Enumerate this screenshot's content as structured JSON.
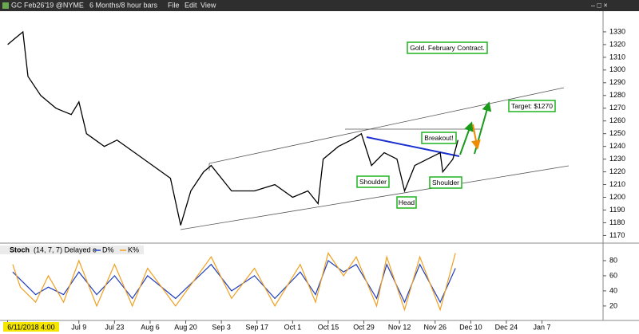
{
  "toolbar": {
    "symbol": "GC Feb26'19 @NYME",
    "period": "6 Months/8 hour bars",
    "menus": [
      "File",
      "Edit",
      "View"
    ]
  },
  "chart_data": [
    {
      "type": "line",
      "annotations": [
        "Gold. February Contract.",
        "Target: $1270",
        "Breakout!",
        "Shoulder",
        "Head",
        "Shoulder"
      ],
      "x": [
        0,
        3,
        6,
        8,
        13,
        19,
        25,
        28,
        31,
        38,
        43,
        50,
        57,
        64,
        68,
        72,
        77,
        80,
        88,
        97,
        105,
        112,
        118,
        122,
        124,
        130,
        135,
        139,
        143,
        148,
        153,
        156,
        160,
        165,
        170,
        171,
        175,
        177
      ],
      "series": [
        {
          "name": "GC",
          "color": "#000000",
          "values": [
            1320,
            1325,
            1330,
            1295,
            1280,
            1270,
            1265,
            1275,
            1250,
            1240,
            1245,
            1235,
            1225,
            1215,
            1178,
            1205,
            1220,
            1225,
            1205,
            1205,
            1210,
            1200,
            1205,
            1195,
            1230,
            1240,
            1245,
            1250,
            1225,
            1235,
            1230,
            1205,
            1225,
            1230,
            1235,
            1220,
            1230,
            1245
          ]
        }
      ],
      "xlim": [
        -3,
        234
      ],
      "xticks": [
        {
          "value": 0,
          "label": "6/11/2018 4:00"
        },
        {
          "value": 28,
          "label": "Jul 9"
        },
        {
          "value": 42,
          "label": "Jul 23"
        },
        {
          "value": 56,
          "label": "Aug 6"
        },
        {
          "value": 70,
          "label": "Aug 20"
        },
        {
          "value": 84,
          "label": "Sep 3"
        },
        {
          "value": 98,
          "label": "Sep 17"
        },
        {
          "value": 112,
          "label": "Oct 1"
        },
        {
          "value": 126,
          "label": "Oct 15"
        },
        {
          "value": 140,
          "label": "Oct 29"
        },
        {
          "value": 154,
          "label": "Nov 12"
        },
        {
          "value": 168,
          "label": "Nov 26"
        },
        {
          "value": 182,
          "label": "Dec 10"
        },
        {
          "value": 196,
          "label": "Dec 24"
        },
        {
          "value": 210,
          "label": "Jan 7"
        }
      ],
      "ylim": [
        1164,
        1345
      ],
      "yticks": [
        1170,
        1180,
        1190,
        1200,
        1210,
        1220,
        1230,
        1240,
        1250,
        1260,
        1270,
        1280,
        1290,
        1300,
        1310,
        1320,
        1330
      ]
    },
    {
      "type": "line",
      "title": "Stoch",
      "subtitle": "(14, 7, 7) Delayed e",
      "x": [
        2,
        5,
        11,
        16,
        22,
        28,
        35,
        42,
        49,
        55,
        66,
        80,
        88,
        97,
        105,
        115,
        121,
        126,
        132,
        137,
        145,
        149,
        156,
        162,
        170,
        176
      ],
      "series": [
        {
          "name": "D%",
          "color": "#1f3fbf",
          "values": [
            65,
            55,
            35,
            45,
            35,
            65,
            35,
            60,
            30,
            60,
            30,
            75,
            40,
            60,
            30,
            65,
            35,
            80,
            65,
            75,
            30,
            75,
            25,
            75,
            25,
            70
          ]
        },
        {
          "name": "K%",
          "color": "#f0a020",
          "values": [
            75,
            45,
            25,
            60,
            25,
            80,
            20,
            75,
            20,
            70,
            20,
            85,
            30,
            70,
            20,
            75,
            25,
            90,
            60,
            85,
            20,
            85,
            15,
            85,
            15,
            90
          ]
        }
      ],
      "xlim": [
        -3,
        234
      ],
      "ylim": [
        3,
        100
      ],
      "yticks": [
        20,
        40,
        60,
        80
      ]
    }
  ]
}
